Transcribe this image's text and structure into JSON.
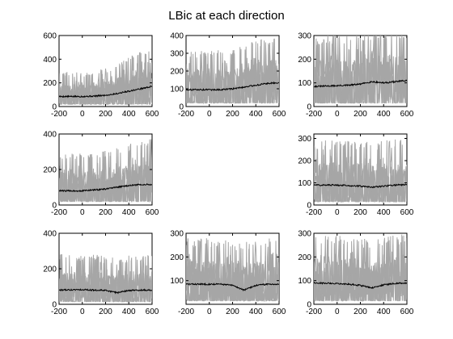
{
  "figure": {
    "title": "LBic at each direction"
  },
  "colors": {
    "background": "#ffffff",
    "trials": "#a6a6a6",
    "mean": "#000000",
    "axes": "#000000"
  },
  "chart_data": {
    "type": "line",
    "title": "LBic at each direction",
    "grid": false,
    "x_range": [
      -200,
      600
    ],
    "x_ticks": [
      -200,
      0,
      200,
      400,
      600
    ],
    "panels": [
      {
        "row": 1,
        "col": 1,
        "ylim": [
          0,
          600
        ],
        "y_ticks": [
          0,
          200,
          400,
          600
        ],
        "mean": {
          "x": [
            -200,
            0,
            100,
            200,
            300,
            400,
            500,
            600
          ],
          "y": [
            85,
            85,
            88,
            95,
            110,
            130,
            150,
            170
          ]
        },
        "spread": {
          "low": 20,
          "high": [
            250,
            250,
            260,
            280,
            320,
            380,
            420,
            440
          ]
        }
      },
      {
        "row": 1,
        "col": 2,
        "ylim": [
          0,
          400
        ],
        "y_ticks": [
          0,
          100,
          200,
          300,
          400
        ],
        "mean": {
          "x": [
            -200,
            0,
            100,
            200,
            300,
            400,
            500,
            600
          ],
          "y": [
            95,
            95,
            95,
            100,
            110,
            120,
            130,
            135
          ]
        },
        "spread": {
          "low": 20,
          "high": [
            280,
            270,
            280,
            290,
            310,
            330,
            340,
            350
          ]
        }
      },
      {
        "row": 1,
        "col": 3,
        "ylim": [
          0,
          300
        ],
        "y_ticks": [
          0,
          100,
          200,
          300
        ],
        "mean": {
          "x": [
            -200,
            0,
            100,
            200,
            300,
            400,
            500,
            600
          ],
          "y": [
            85,
            88,
            90,
            95,
            105,
            100,
            105,
            110
          ]
        },
        "spread": {
          "low": 15,
          "high": [
            260,
            260,
            265,
            270,
            280,
            280,
            280,
            285
          ]
        }
      },
      {
        "row": 2,
        "col": 1,
        "ylim": [
          0,
          400
        ],
        "y_ticks": [
          0,
          200,
          400
        ],
        "mean": {
          "x": [
            -200,
            0,
            100,
            200,
            300,
            400,
            500,
            600
          ],
          "y": [
            80,
            80,
            85,
            90,
            100,
            110,
            115,
            115
          ]
        },
        "spread": {
          "low": 20,
          "high": [
            250,
            250,
            260,
            270,
            280,
            300,
            320,
            330
          ]
        }
      },
      {
        "row": 2,
        "col": 3,
        "ylim": [
          0,
          320
        ],
        "y_ticks": [
          0,
          100,
          200,
          300
        ],
        "mean": {
          "x": [
            -200,
            0,
            100,
            200,
            300,
            400,
            500,
            600
          ],
          "y": [
            90,
            90,
            88,
            85,
            80,
            85,
            90,
            92
          ]
        },
        "spread": {
          "low": 15,
          "high": [
            250,
            250,
            250,
            245,
            245,
            250,
            255,
            260
          ]
        }
      },
      {
        "row": 3,
        "col": 1,
        "ylim": [
          0,
          400
        ],
        "y_ticks": [
          0,
          200,
          400
        ],
        "mean": {
          "x": [
            -200,
            0,
            100,
            200,
            300,
            400,
            500,
            600
          ],
          "y": [
            80,
            82,
            80,
            78,
            65,
            78,
            80,
            80
          ]
        },
        "spread": {
          "low": 15,
          "high": [
            240,
            240,
            240,
            230,
            220,
            240,
            245,
            250
          ]
        }
      },
      {
        "row": 3,
        "col": 2,
        "ylim": [
          0,
          300
        ],
        "y_ticks": [
          100,
          200,
          300
        ],
        "mean": {
          "x": [
            -200,
            0,
            100,
            200,
            300,
            400,
            500,
            600
          ],
          "y": [
            85,
            85,
            85,
            80,
            60,
            80,
            85,
            85
          ]
        },
        "spread": {
          "low": 15,
          "high": [
            240,
            240,
            240,
            230,
            220,
            235,
            240,
            240
          ]
        }
      },
      {
        "row": 3,
        "col": 3,
        "ylim": [
          0,
          300
        ],
        "y_ticks": [
          0,
          100,
          200,
          300
        ],
        "mean": {
          "x": [
            -200,
            0,
            100,
            200,
            300,
            400,
            500,
            600
          ],
          "y": [
            90,
            88,
            85,
            80,
            70,
            82,
            88,
            90
          ]
        },
        "spread": {
          "low": 15,
          "high": [
            250,
            250,
            250,
            240,
            235,
            245,
            250,
            255
          ]
        }
      }
    ]
  }
}
